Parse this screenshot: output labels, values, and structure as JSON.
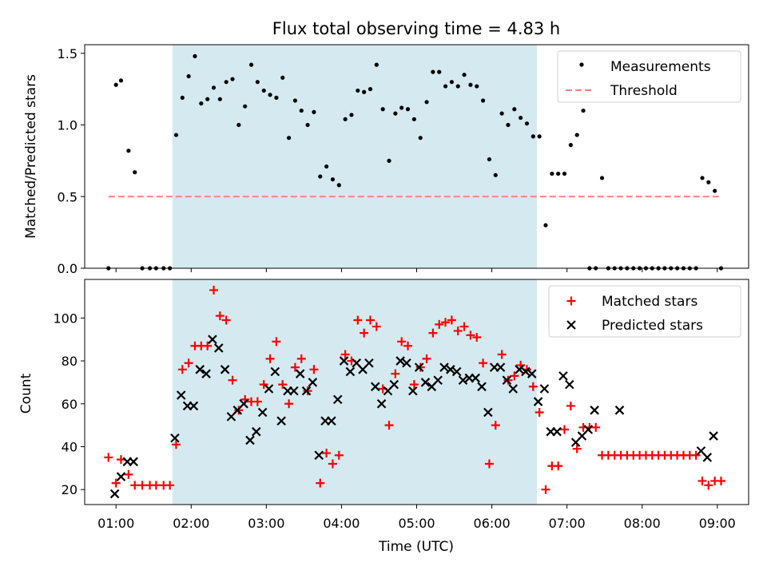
{
  "chart_data": [
    {
      "type": "scatter",
      "title": "Flux total observing time = 4.83 h",
      "xlabel": "",
      "ylabel": "Matched/Predicted stars",
      "x_unit": "hours UTC",
      "xlim": [
        "00:35",
        "09:25"
      ],
      "ylim": [
        0,
        1.56
      ],
      "yticks": [
        "0.0",
        "0.5",
        "1.0",
        "1.5"
      ],
      "shaded_region": {
        "start": "01:45",
        "end": "06:36",
        "color": "#d4eaf0"
      },
      "legend_position": "upper right",
      "legend": [
        "Measurements",
        "Threshold"
      ],
      "series": [
        {
          "name": "Measurements",
          "marker": "dot",
          "color": "#000000",
          "x": [
            "00:54",
            "01:00",
            "01:04",
            "01:10",
            "01:15",
            "01:21",
            "01:27",
            "01:32",
            "01:38",
            "01:43",
            "01:48",
            "01:53",
            "01:58",
            "02:03",
            "02:08",
            "02:13",
            "02:18",
            "02:23",
            "02:28",
            "02:33",
            "02:38",
            "02:43",
            "02:48",
            "02:53",
            "02:58",
            "03:03",
            "03:08",
            "03:13",
            "03:18",
            "03:23",
            "03:28",
            "03:33",
            "03:38",
            "03:43",
            "03:48",
            "03:53",
            "03:58",
            "04:03",
            "04:08",
            "04:13",
            "04:18",
            "04:23",
            "04:28",
            "04:33",
            "04:38",
            "04:43",
            "04:48",
            "04:53",
            "04:58",
            "05:03",
            "05:08",
            "05:13",
            "05:18",
            "05:23",
            "05:28",
            "05:33",
            "05:38",
            "05:43",
            "05:48",
            "05:53",
            "05:58",
            "06:03",
            "06:08",
            "06:13",
            "06:18",
            "06:23",
            "06:28",
            "06:33",
            "06:38",
            "06:43",
            "06:48",
            "06:53",
            "06:58",
            "07:03",
            "07:08",
            "07:13",
            "07:18",
            "07:23",
            "07:28",
            "07:33",
            "07:38",
            "07:43",
            "07:48",
            "07:53",
            "07:58",
            "08:03",
            "08:08",
            "08:13",
            "08:18",
            "08:23",
            "08:28",
            "08:33",
            "08:38",
            "08:43",
            "08:48",
            "08:53",
            "08:58",
            "09:03"
          ],
          "y": [
            0.0,
            1.28,
            1.31,
            0.82,
            0.67,
            0.0,
            0.0,
            0.0,
            0.0,
            0.0,
            0.93,
            1.19,
            1.34,
            1.48,
            1.15,
            1.18,
            1.26,
            1.18,
            1.3,
            1.32,
            1.0,
            1.13,
            1.42,
            1.3,
            1.24,
            1.21,
            1.19,
            1.33,
            0.91,
            1.17,
            1.1,
            1.0,
            1.09,
            0.64,
            0.71,
            0.62,
            0.58,
            1.04,
            1.07,
            1.24,
            1.23,
            1.25,
            1.42,
            1.11,
            0.75,
            1.08,
            1.12,
            1.11,
            1.04,
            0.91,
            1.16,
            1.37,
            1.37,
            1.27,
            1.3,
            1.27,
            1.35,
            1.28,
            1.27,
            1.17,
            0.76,
            0.65,
            1.08,
            1.0,
            1.11,
            1.05,
            1.01,
            0.92,
            0.92,
            0.3,
            0.66,
            0.66,
            0.66,
            0.86,
            0.93,
            1.1,
            0.0,
            0.0,
            0.63,
            0.0,
            0.0,
            0.0,
            0.0,
            0.0,
            0.0,
            0.0,
            0.0,
            0.0,
            0.0,
            0.0,
            0.0,
            0.0,
            0.0,
            0.0,
            0.63,
            0.6,
            0.54,
            0.0
          ]
        },
        {
          "name": "Threshold",
          "style": "dashed",
          "color": "#ff7f7f",
          "x": [
            "00:54",
            "09:03"
          ],
          "y": [
            0.5,
            0.5
          ]
        }
      ]
    },
    {
      "type": "scatter",
      "title": "",
      "xlabel": "Time (UTC)",
      "ylabel": "Count",
      "x_unit": "hours UTC",
      "xlim": [
        "00:35",
        "09:25"
      ],
      "ylim": [
        13,
        118
      ],
      "yticks": [
        "20",
        "40",
        "60",
        "80",
        "100"
      ],
      "xticks": [
        "01:00",
        "02:00",
        "03:00",
        "04:00",
        "05:00",
        "06:00",
        "07:00",
        "08:00",
        "09:00"
      ],
      "shaded_region": {
        "start": "01:45",
        "end": "06:36",
        "color": "#d4eaf0"
      },
      "legend_position": "upper right",
      "legend": [
        "Matched stars",
        "Predicted stars"
      ],
      "series": [
        {
          "name": "Matched stars",
          "marker": "+",
          "color": "#ff0000",
          "x": [
            "00:54",
            "01:00",
            "01:04",
            "01:10",
            "01:15",
            "01:21",
            "01:27",
            "01:32",
            "01:38",
            "01:43",
            "01:48",
            "01:53",
            "01:58",
            "02:03",
            "02:08",
            "02:13",
            "02:18",
            "02:23",
            "02:28",
            "02:33",
            "02:38",
            "02:43",
            "02:48",
            "02:53",
            "02:58",
            "03:03",
            "03:08",
            "03:13",
            "03:18",
            "03:23",
            "03:28",
            "03:33",
            "03:38",
            "03:43",
            "03:48",
            "03:53",
            "03:58",
            "04:03",
            "04:08",
            "04:13",
            "04:18",
            "04:23",
            "04:28",
            "04:33",
            "04:38",
            "04:43",
            "04:48",
            "04:53",
            "04:58",
            "05:03",
            "05:08",
            "05:13",
            "05:18",
            "05:23",
            "05:28",
            "05:33",
            "05:38",
            "05:43",
            "05:48",
            "05:53",
            "05:58",
            "06:03",
            "06:08",
            "06:13",
            "06:18",
            "06:23",
            "06:28",
            "06:33",
            "06:38",
            "06:43",
            "06:48",
            "06:53",
            "06:58",
            "07:03",
            "07:08",
            "07:13",
            "07:18",
            "07:23",
            "07:28",
            "07:33",
            "07:38",
            "07:43",
            "07:48",
            "07:53",
            "07:58",
            "08:03",
            "08:08",
            "08:13",
            "08:18",
            "08:23",
            "08:28",
            "08:33",
            "08:38",
            "08:43",
            "08:48",
            "08:53",
            "08:58",
            "09:03"
          ],
          "y": [
            35,
            23,
            34,
            27,
            22,
            22,
            22,
            22,
            22,
            22,
            41,
            76,
            79,
            87,
            87,
            87,
            113,
            101,
            99,
            71,
            57,
            62,
            61,
            61,
            69,
            81,
            89,
            69,
            60,
            77,
            81,
            66,
            76,
            23,
            37,
            32,
            36,
            83,
            80,
            99,
            93,
            99,
            96,
            67,
            50,
            74,
            89,
            87,
            69,
            77,
            81,
            93,
            97,
            98,
            99,
            94,
            96,
            92,
            91,
            79,
            32,
            50,
            83,
            71,
            73,
            78,
            76,
            68,
            56,
            20,
            31,
            31,
            48,
            59,
            39,
            49,
            49,
            49,
            36,
            36,
            36,
            36,
            36,
            36,
            36,
            36,
            36,
            36,
            36,
            36,
            36,
            36,
            36,
            36,
            24,
            22,
            24,
            24
          ]
        },
        {
          "name": "Predicted stars",
          "marker": "x",
          "color": "#000000",
          "x": [
            "00:59",
            "01:04",
            "01:09",
            "01:14",
            "01:47",
            "01:52",
            "01:57",
            "02:02",
            "02:07",
            "02:12",
            "02:17",
            "02:22",
            "02:27",
            "02:32",
            "02:37",
            "02:42",
            "02:47",
            "02:52",
            "02:57",
            "03:02",
            "03:07",
            "03:12",
            "03:17",
            "03:22",
            "03:27",
            "03:32",
            "03:37",
            "03:42",
            "03:47",
            "03:52",
            "03:57",
            "04:02",
            "04:07",
            "04:12",
            "04:17",
            "04:22",
            "04:27",
            "04:32",
            "04:37",
            "04:42",
            "04:47",
            "04:52",
            "04:57",
            "05:02",
            "05:07",
            "05:12",
            "05:17",
            "05:22",
            "05:27",
            "05:32",
            "05:37",
            "05:42",
            "05:47",
            "05:52",
            "05:57",
            "06:02",
            "06:07",
            "06:12",
            "06:17",
            "06:22",
            "06:27",
            "06:32",
            "06:37",
            "06:42",
            "06:47",
            "06:52",
            "06:57",
            "07:02",
            "07:07",
            "07:12",
            "07:17",
            "07:22",
            "07:42",
            "08:47",
            "08:52",
            "08:57"
          ],
          "y": [
            18,
            26,
            33,
            33,
            44,
            64,
            59,
            59,
            76,
            74,
            90,
            86,
            76,
            54,
            57,
            60,
            43,
            47,
            56,
            67,
            75,
            52,
            66,
            66,
            74,
            66,
            70,
            36,
            52,
            52,
            62,
            80,
            75,
            79,
            76,
            79,
            68,
            60,
            66,
            69,
            80,
            79,
            66,
            77,
            70,
            68,
            71,
            77,
            76,
            75,
            71,
            72,
            72,
            68,
            56,
            77,
            77,
            71,
            67,
            76,
            75,
            74,
            61,
            67,
            47,
            47,
            73,
            69,
            42,
            45,
            48,
            57,
            57,
            38,
            35,
            45
          ]
        }
      ]
    }
  ]
}
